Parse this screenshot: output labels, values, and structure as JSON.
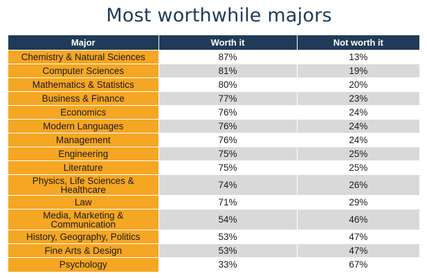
{
  "title": "Most worthwhile majors",
  "colors": {
    "header_bg": "#1f3b57",
    "major_bg": "#f5a623",
    "stripe_bg": "#d9d9d9",
    "title_color": "#1f3b57"
  },
  "chart_data": {
    "type": "table",
    "title": "Most worthwhile majors",
    "columns": [
      "Major",
      "Worth it",
      "Not worth it"
    ],
    "rows": [
      {
        "major": "Chemistry & Natural Sciences",
        "worth": "87%",
        "not_worth": "13%"
      },
      {
        "major": "Computer Sciences",
        "worth": "81%",
        "not_worth": "19%"
      },
      {
        "major": "Mathematics & Statistics",
        "worth": "80%",
        "not_worth": "20%"
      },
      {
        "major": "Business & Finance",
        "worth": "77%",
        "not_worth": "23%"
      },
      {
        "major": "Economics",
        "worth": "76%",
        "not_worth": "24%"
      },
      {
        "major": "Modern Languages",
        "worth": "76%",
        "not_worth": "24%"
      },
      {
        "major": "Management",
        "worth": "76%",
        "not_worth": "24%"
      },
      {
        "major": "Engineering",
        "worth": "75%",
        "not_worth": "25%"
      },
      {
        "major": "Literature",
        "worth": "75%",
        "not_worth": "25%"
      },
      {
        "major": "Physics, Life Sciences & Healthcare",
        "worth": "74%",
        "not_worth": "26%"
      },
      {
        "major": "Law",
        "worth": "71%",
        "not_worth": "29%"
      },
      {
        "major": "Media, Marketing & Communication",
        "worth": "54%",
        "not_worth": "46%"
      },
      {
        "major": "History, Geography, Politics",
        "worth": "53%",
        "not_worth": "47%"
      },
      {
        "major": "Fine Arts & Design",
        "worth": "53%",
        "not_worth": "47%"
      },
      {
        "major": "Psychology",
        "worth": "33%",
        "not_worth": "67%"
      }
    ]
  }
}
